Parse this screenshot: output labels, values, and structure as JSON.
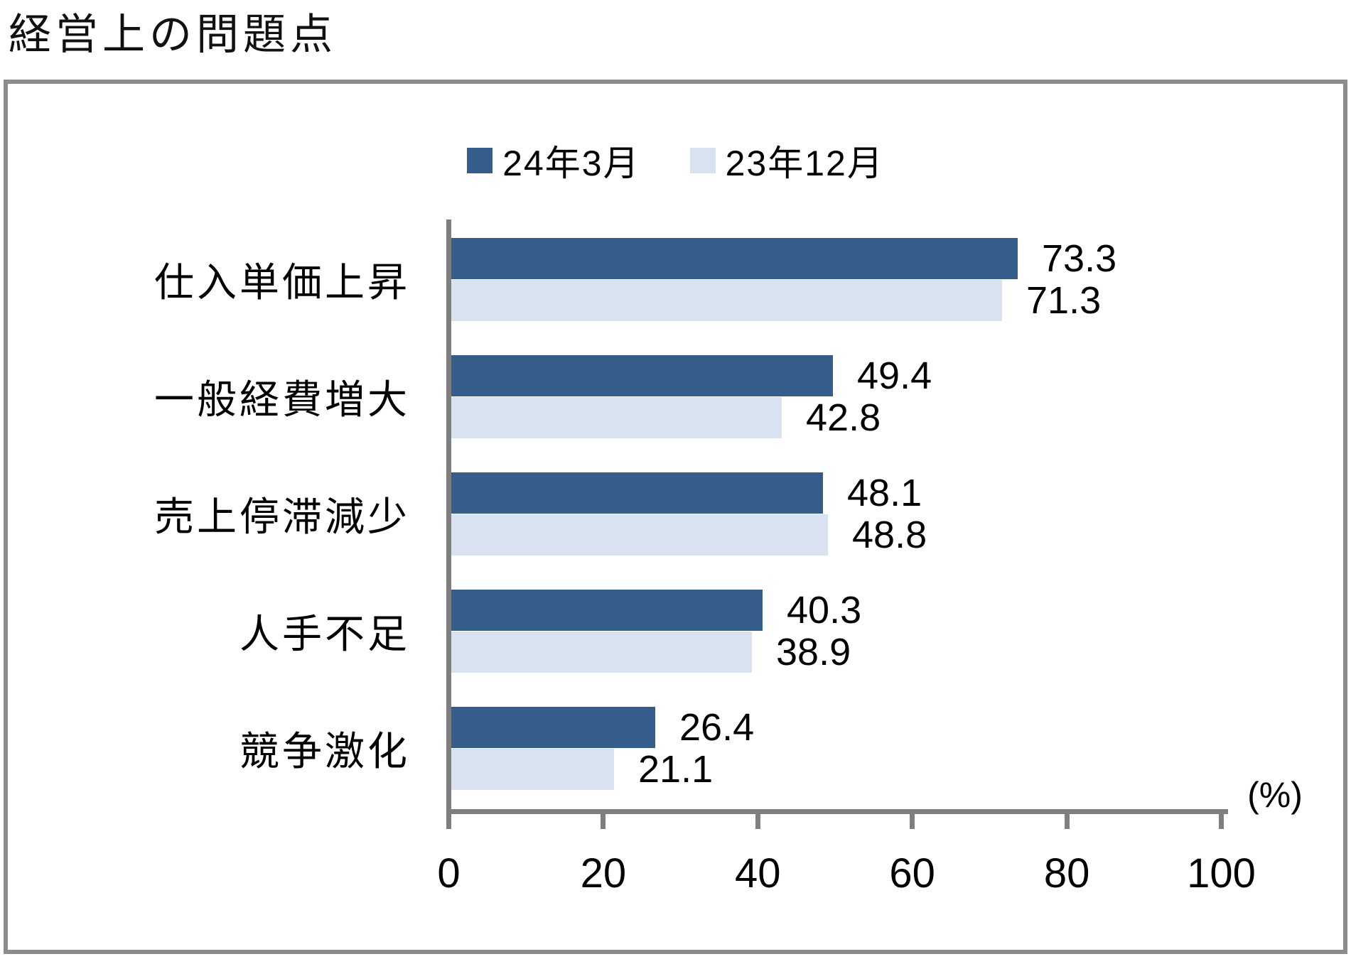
{
  "title": "経営上の問題点",
  "legend": [
    {
      "label": "24年3月",
      "color": "#345D8C"
    },
    {
      "label": "23年12月",
      "color": "#D9E2F1"
    }
  ],
  "chart_data": {
    "type": "bar",
    "orientation": "horizontal",
    "title": "経営上の問題点",
    "categories": [
      "仕入単価上昇",
      "一般経費増大",
      "売上停滞減少",
      "人手不足",
      "競争激化"
    ],
    "series": [
      {
        "name": "24年3月",
        "color": "#345D8C",
        "values": [
          73.3,
          49.4,
          48.1,
          40.3,
          26.4
        ]
      },
      {
        "name": "23年12月",
        "color": "#D9E2F1",
        "values": [
          71.3,
          42.8,
          48.8,
          38.9,
          21.1
        ]
      }
    ],
    "xlabel": "(%)",
    "xlim": [
      0,
      100
    ],
    "xticks": [
      0,
      20,
      40,
      60,
      80,
      100
    ],
    "grid": false,
    "legend_position": "top",
    "value_labels": true
  },
  "style": {
    "axis_color": "#7F7F7F",
    "border_color": "#8C8C8C",
    "text_color": "#000000"
  }
}
